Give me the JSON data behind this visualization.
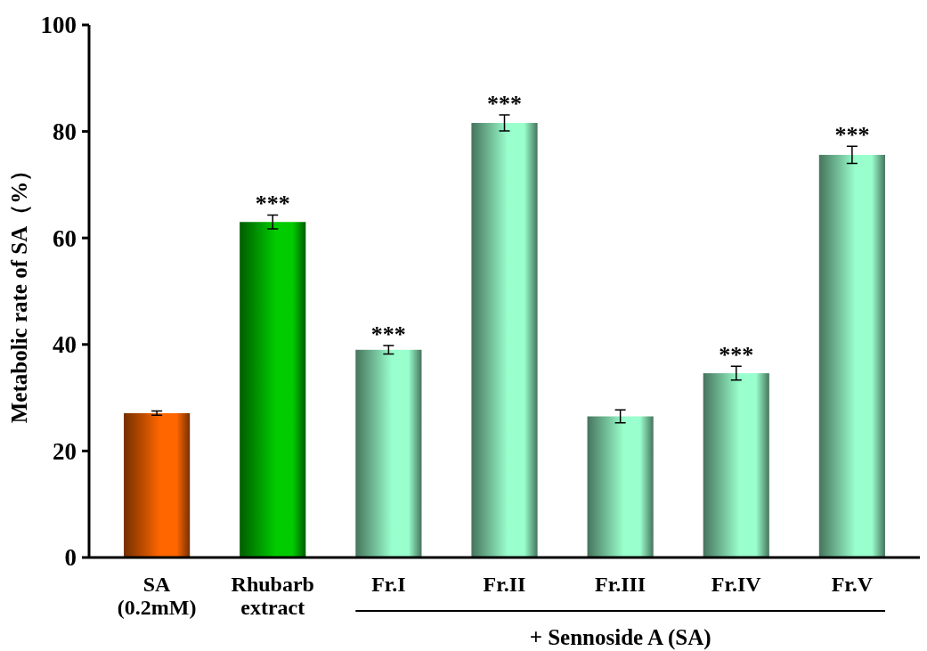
{
  "chart_data": {
    "type": "bar",
    "ylabel": "Metabolic rate of SA（%）",
    "categories": [
      "SA\n(0.2mM)",
      "Rhubarb\nextract",
      "Fr.I",
      "Fr.II",
      "Fr.III",
      "Fr.IV",
      "Fr.V"
    ],
    "values": [
      27.1,
      63.0,
      39.0,
      81.6,
      26.5,
      34.6,
      75.6
    ],
    "errors": [
      0.4,
      1.3,
      0.8,
      1.5,
      1.2,
      1.3,
      1.6
    ],
    "colors": [
      "#ff6600",
      "#00cc00",
      "#99ffcc",
      "#99ffcc",
      "#99ffcc",
      "#99ffcc",
      "#99ffcc"
    ],
    "ylim": [
      0,
      100
    ],
    "yticks": [
      0,
      20,
      40,
      60,
      80,
      100
    ],
    "grid": false,
    "annotations": [
      {
        "text": "***",
        "x": "Rhubarb\nextract",
        "y": 64.3
      },
      {
        "text": "***",
        "x": "Fr.I",
        "y": 39.8
      },
      {
        "text": "***",
        "x": "Fr.II",
        "y": 83.1
      },
      {
        "text": "***",
        "x": "Fr.IV",
        "y": 35.9
      },
      {
        "text": "***",
        "x": "Fr.V",
        "y": 77.2
      },
      "+ Sennoside A (SA)"
    ]
  }
}
